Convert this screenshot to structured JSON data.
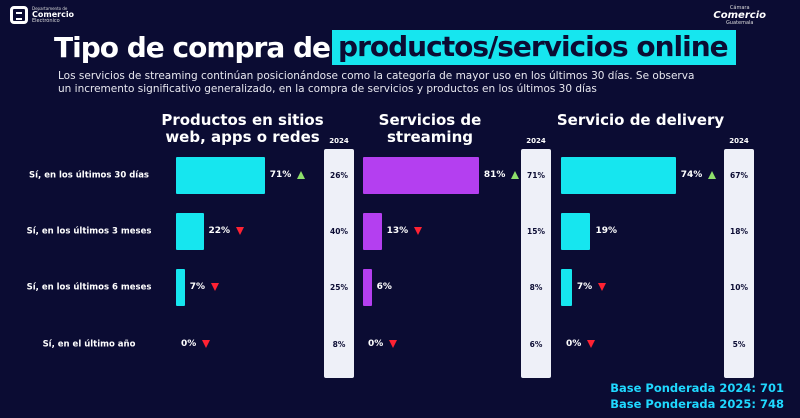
{
  "logo_left": {
    "line1": "Departamento de",
    "line2": "Comercio",
    "line3": "Electrónico"
  },
  "logo_right": {
    "line1": "Cámara",
    "line2": "Comercio",
    "line3": "Guatemala"
  },
  "title": {
    "part1": "Tipo de compra de",
    "part2": "productos/servicios online"
  },
  "subtitle": "Los servicios de streaming continúan posicionándose como la categoría de mayor uso en los últimos 30 días.  Se observa un incremento significativo generalizado,  en la compra de servicios y productos en los últimos 30 días",
  "colors": {
    "cyan": "#16e6ef",
    "purple": "#b43ff0",
    "up": "#8ee06a",
    "down": "#ff2233"
  },
  "chart_data": {
    "type": "bar",
    "orientation": "horizontal",
    "categories": [
      "Sí, en los últimos 30 días",
      "Sí, en los últimos 3 meses",
      "Sí, en los últimos 6 meses",
      "Sí, en el último año"
    ],
    "year_label": "2024",
    "panels": [
      {
        "name": "Productos en sitios web, apps o redes",
        "color": "#16e6ef",
        "values": [
          71,
          22,
          7,
          0
        ],
        "labels": [
          "71%",
          "22%",
          "7%",
          "0%"
        ],
        "trend": [
          "up",
          "down",
          "down",
          "down"
        ],
        "values_2024": [
          "26%",
          "40%",
          "25%",
          "8%"
        ]
      },
      {
        "name": "Servicios de streaming",
        "color": "#b43ff0",
        "values": [
          81,
          13,
          6,
          0
        ],
        "labels": [
          "81%",
          "13%",
          "6%",
          "0%"
        ],
        "trend": [
          "up",
          "down",
          "none",
          "down"
        ],
        "values_2024": [
          "71%",
          "15%",
          "8%",
          "6%"
        ]
      },
      {
        "name": "Servicio de delivery",
        "color": "#16e6ef",
        "values": [
          74,
          19,
          7,
          0
        ],
        "labels": [
          "74%",
          "19%",
          "7%",
          "0%"
        ],
        "trend": [
          "up",
          "none",
          "down",
          "down"
        ],
        "values_2024": [
          "67%",
          "18%",
          "10%",
          "5%"
        ]
      }
    ]
  },
  "base": [
    "Base Ponderada 2024: 701",
    "Base Ponderada 2025: 748"
  ]
}
